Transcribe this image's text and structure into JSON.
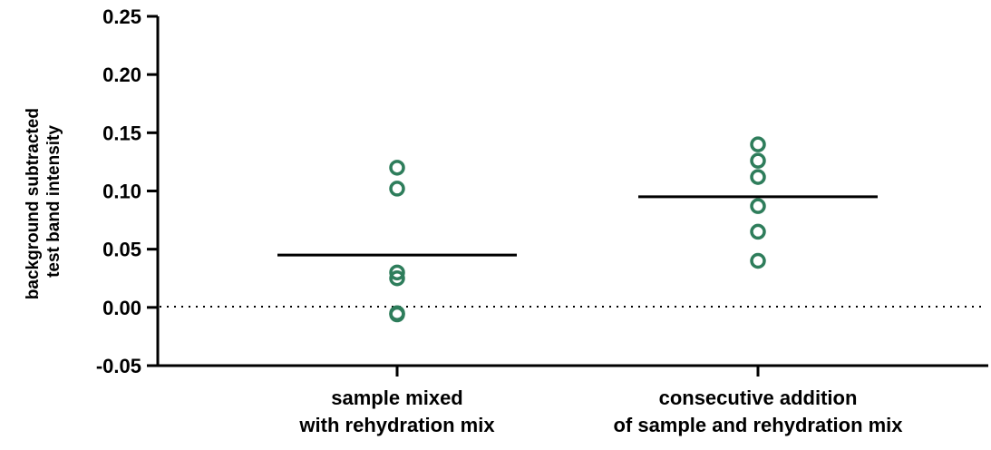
{
  "chart_data": {
    "type": "scatter",
    "title": "",
    "ylabel": [
      "background subtracted",
      "test band intensity"
    ],
    "ylim": [
      -0.05,
      0.25
    ],
    "yticks": [
      "0.25",
      "0.20",
      "0.15",
      "0.10",
      "0.05",
      "0.00",
      "-0.05"
    ],
    "categories": [
      [
        "sample mixed",
        "with rehydration mix"
      ],
      [
        "consecutive addition",
        "of sample and rehydration mix"
      ]
    ],
    "series": [
      {
        "values": [
          0.12,
          0.102,
          0.03,
          0.025,
          -0.005,
          -0.006
        ],
        "mean": 0.045
      },
      {
        "values": [
          0.14,
          0.126,
          0.112,
          0.087,
          0.065,
          0.04
        ],
        "mean": 0.095
      }
    ],
    "reference_line": {
      "y": 0.0,
      "style": "dotted"
    },
    "grid": false,
    "colors": {
      "points": "#2e7d5b",
      "mean": "#000000",
      "axis": "#000000"
    }
  }
}
